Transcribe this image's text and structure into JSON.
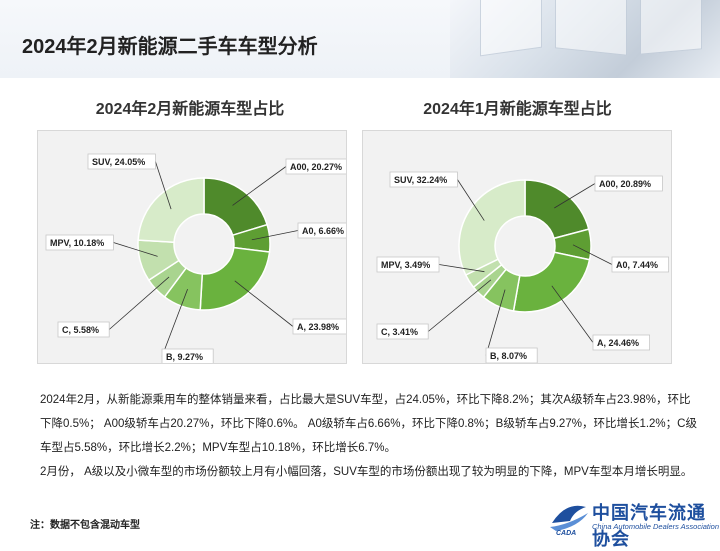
{
  "page": {
    "title": "2024年2月新能源二手车车型分析",
    "note": "注：数据不包含混动车型",
    "paragraphs": [
      "2024年2月，从新能源乘用车的整体销量来看，占比最大是SUV车型，占24.05%，环比下降8.2%；其次A级轿车占23.98%，环比下降0.5%； A00级轿车占20.27%，环比下降0.6%。 A0级轿车占6.66%，环比下降0.8%；B级轿车占9.27%，环比增长1.2%；C级车型占5.58%，环比增长2.2%；MPV车型占10.18%，环比增长6.7%。",
      "2月份， A级以及小微车型的市场份额较上月有小幅回落，SUV车型的市场份额出现了较为明显的下降，MPV车型本月增长明显。"
    ],
    "logo": {
      "cn": "中国汽车流通协会",
      "en": "China Automobile Dealers Association",
      "mark_text": "CADA"
    }
  },
  "colors": {
    "A00": "#4f8a2b",
    "A0": "#5e9e33",
    "A": "#6ab23e",
    "B": "#86c35f",
    "C": "#a9d48f",
    "MPV": "#c2e0ae",
    "SUV": "#d7ebc9"
  },
  "chart_data": [
    {
      "type": "pie",
      "donut": true,
      "title": "2024年2月新能源车型占比",
      "categories": [
        "A00",
        "A0",
        "A",
        "B",
        "C",
        "MPV",
        "SUV"
      ],
      "values": [
        20.27,
        6.66,
        23.98,
        9.27,
        5.58,
        10.18,
        24.05
      ],
      "labels": [
        "A00, 20.27%",
        "A0, 6.66%",
        "A, 23.98%",
        "B, 9.27%",
        "C, 5.58%",
        "MPV, 10.18%",
        "SUV, 24.05%"
      ]
    },
    {
      "type": "pie",
      "donut": true,
      "title": "2024年1月新能源车型占比",
      "categories": [
        "A00",
        "A0",
        "A",
        "B",
        "C",
        "MPV",
        "SUV"
      ],
      "values": [
        20.89,
        7.44,
        24.46,
        8.07,
        3.41,
        3.49,
        32.24
      ],
      "labels": [
        "A00, 20.89%",
        "A0, 7.44%",
        "A, 24.46%",
        "B, 8.07%",
        "C, 3.41%",
        "MPV, 3.49%",
        "SUV, 32.24%"
      ]
    }
  ]
}
